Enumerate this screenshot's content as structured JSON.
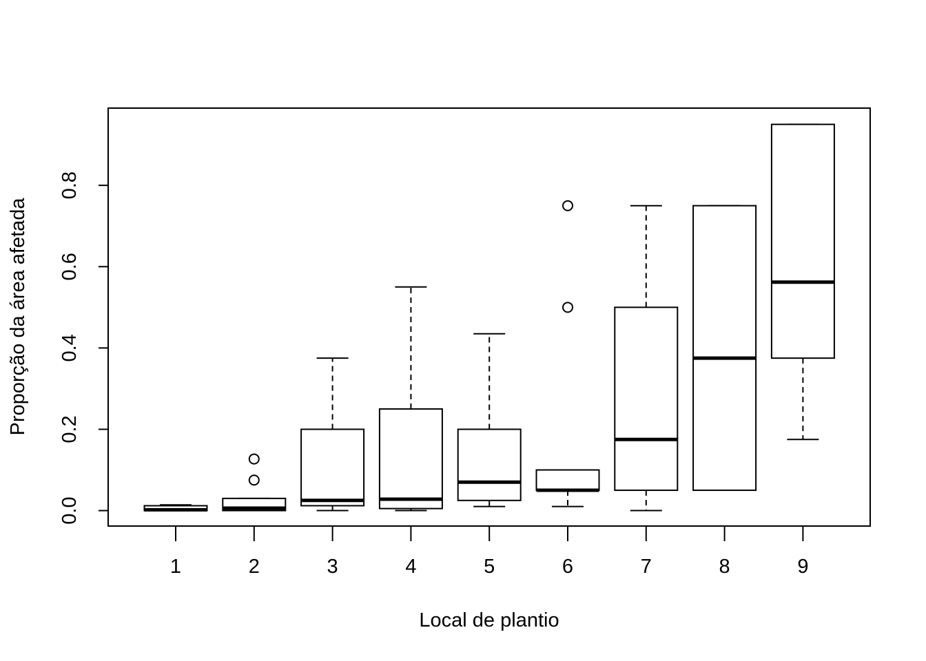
{
  "chart_data": {
    "type": "boxplot",
    "title": "",
    "xlabel": "Local de plantio",
    "ylabel": "Proporção da área afetada",
    "categories": [
      "1",
      "2",
      "3",
      "4",
      "5",
      "6",
      "7",
      "8",
      "9"
    ],
    "yticks": [
      0.0,
      0.2,
      0.4,
      0.6,
      0.8
    ],
    "ytick_labels": [
      "0.0",
      "0.2",
      "0.4",
      "0.6",
      "0.8"
    ],
    "ylim": [
      -0.038,
      0.99
    ],
    "grid": false,
    "boxes": [
      {
        "category": "1",
        "whisker_low": 0.0,
        "q1": 0.0,
        "median": 0.002,
        "q3": 0.012,
        "whisker_high": 0.014,
        "outliers": []
      },
      {
        "category": "2",
        "whisker_low": 0.0,
        "q1": 0.0,
        "median": 0.006,
        "q3": 0.03,
        "whisker_high": 0.03,
        "outliers": [
          0.075,
          0.127
        ]
      },
      {
        "category": "3",
        "whisker_low": 0.0,
        "q1": 0.012,
        "median": 0.025,
        "q3": 0.2,
        "whisker_high": 0.375,
        "outliers": []
      },
      {
        "category": "4",
        "whisker_low": 0.0,
        "q1": 0.005,
        "median": 0.028,
        "q3": 0.25,
        "whisker_high": 0.55,
        "outliers": []
      },
      {
        "category": "5",
        "whisker_low": 0.01,
        "q1": 0.025,
        "median": 0.07,
        "q3": 0.2,
        "whisker_high": 0.435,
        "outliers": []
      },
      {
        "category": "6",
        "whisker_low": 0.01,
        "q1": 0.05,
        "median": 0.05,
        "q3": 0.1,
        "whisker_high": 0.1,
        "outliers": [
          0.5,
          0.75
        ]
      },
      {
        "category": "7",
        "whisker_low": 0.0,
        "q1": 0.05,
        "median": 0.175,
        "q3": 0.5,
        "whisker_high": 0.75,
        "outliers": []
      },
      {
        "category": "8",
        "whisker_low": 0.05,
        "q1": 0.05,
        "median": 0.375,
        "q3": 0.75,
        "whisker_high": 0.75,
        "outliers": []
      },
      {
        "category": "9",
        "whisker_low": 0.175,
        "q1": 0.375,
        "median": 0.562,
        "q3": 0.95,
        "whisker_high": 0.95,
        "outliers": []
      }
    ]
  }
}
